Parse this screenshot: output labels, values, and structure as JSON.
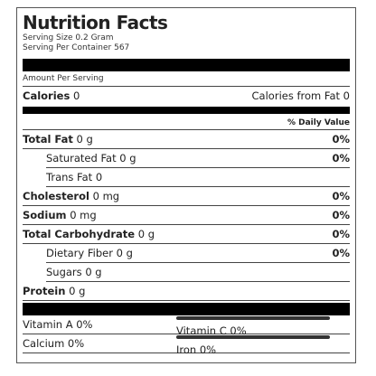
{
  "title": "Nutrition Facts",
  "serving_size": "Serving Size 0.2 Gram",
  "servings_per_container": "Serving Per Container 567",
  "amount_per_serving": "Amount Per Serving",
  "calories": {
    "label": "Calories",
    "value": "0"
  },
  "calories_from_fat": "Calories from Fat 0",
  "daily_value_header": "% Daily Value",
  "nutrients": [
    {
      "label": "Total Fat",
      "amount": "0 g",
      "dv": "0%"
    },
    {
      "label": "Saturated Fat",
      "amount": "0 g",
      "dv": "0%"
    },
    {
      "label": "Trans Fat",
      "amount": "0"
    },
    {
      "label": "Cholesterol",
      "amount": "0 mg",
      "dv": "0%"
    },
    {
      "label": "Sodium",
      "amount": "0 mg",
      "dv": "0%"
    },
    {
      "label": "Total Carbohydrate",
      "amount": "0 g",
      "dv": "0%"
    },
    {
      "label": "Dietary Fiber",
      "amount": "0 g",
      "dv": "0%"
    },
    {
      "label": "Sugars",
      "amount": "0 g"
    },
    {
      "label": "Protein",
      "amount": "0 g"
    }
  ],
  "vitamins": [
    [
      "Vitamin A 0%",
      "Vitamin C 0%"
    ],
    [
      "Calcium 0%",
      "Iron 0%"
    ]
  ]
}
